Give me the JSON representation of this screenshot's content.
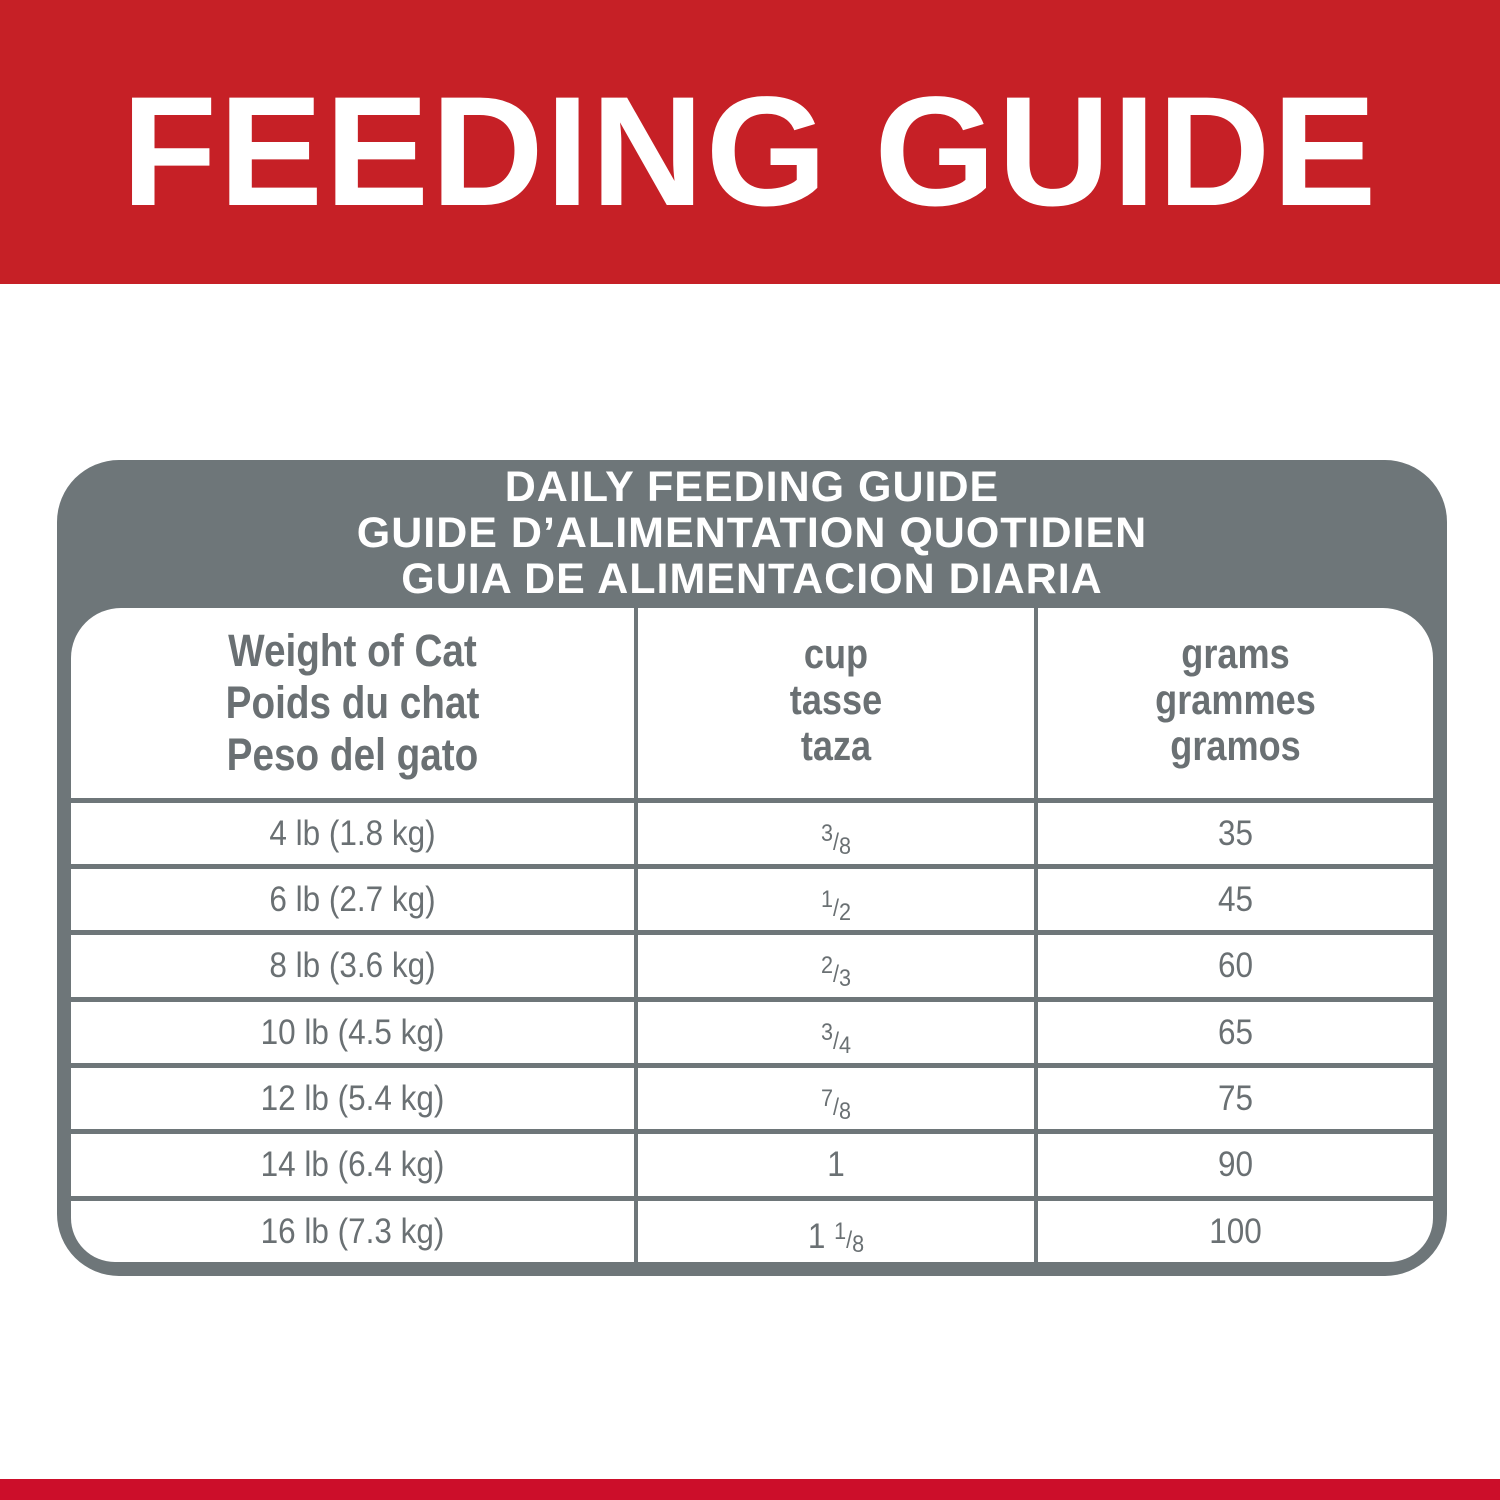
{
  "banner": {
    "title": "FEEDING GUIDE",
    "color": "#c62026"
  },
  "card": {
    "titles": [
      "DAILY FEEDING GUIDE",
      "GUIDE D’ALIMENTATION QUOTIDIEN",
      "GUIA DE ALIMENTACION DIARIA"
    ],
    "color": "#6e7679"
  },
  "table": {
    "headers": [
      [
        "Weight of Cat",
        "Poids du chat",
        "Peso del gato"
      ],
      [
        "cup",
        "tasse",
        "taza"
      ],
      [
        "grams",
        "grammes",
        "gramos"
      ]
    ],
    "rows": [
      {
        "weight": "4 lb (1.8 kg)",
        "cup_whole": "",
        "cup_num": "3",
        "cup_den": "8",
        "grams": "35"
      },
      {
        "weight": "6 lb (2.7 kg)",
        "cup_whole": "",
        "cup_num": "1",
        "cup_den": "2",
        "grams": "45"
      },
      {
        "weight": "8 lb (3.6 kg)",
        "cup_whole": "",
        "cup_num": "2",
        "cup_den": "3",
        "grams": "60"
      },
      {
        "weight": "10 lb (4.5 kg)",
        "cup_whole": "",
        "cup_num": "3",
        "cup_den": "4",
        "grams": "65"
      },
      {
        "weight": "12 lb (5.4 kg)",
        "cup_whole": "",
        "cup_num": "7",
        "cup_den": "8",
        "grams": "75"
      },
      {
        "weight": "14 lb (6.4 kg)",
        "cup_whole": "1",
        "cup_num": "",
        "cup_den": "",
        "grams": "90"
      },
      {
        "weight": "16 lb (7.3 kg)",
        "cup_whole": "1",
        "cup_num": "1",
        "cup_den": "8",
        "grams": "100"
      }
    ]
  },
  "bottom_bar_color": "#cc0e2a"
}
